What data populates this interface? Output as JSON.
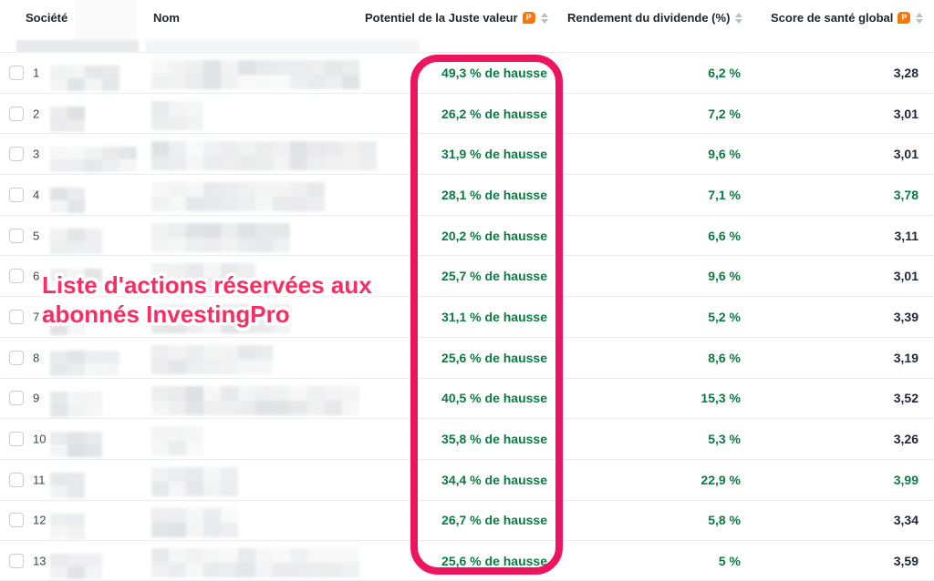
{
  "header": {
    "columns": [
      {
        "label": "Société",
        "pro_badge": false,
        "sortable": false
      },
      {
        "label": "Nom",
        "pro_badge": false,
        "sortable": false
      },
      {
        "label": "Potentiel de la Juste valeur",
        "pro_badge": true,
        "sortable": true
      },
      {
        "label": "Rendement du dividende (%)",
        "pro_badge": false,
        "sortable": true
      },
      {
        "label": "Score de santé global",
        "pro_badge": true,
        "sortable": true
      }
    ],
    "pro_badge_letter": "P"
  },
  "overlay": {
    "line1": "Liste d'actions réservées aux",
    "line2": "abonnés InvestingPro"
  },
  "colors": {
    "annotation_pink": "#ed155e",
    "overlay_text_pink": "#f62e63",
    "positive_green": "#0a7c43",
    "score_dark": "#1e2736",
    "pro_badge_orange": "#f7770f"
  },
  "rows": [
    {
      "num": "1",
      "fair_value": "49,3 % de hausse",
      "dividend_yield": "6,2 %",
      "health_score": "3,28",
      "score_green": false
    },
    {
      "num": "2",
      "fair_value": "26,2 % de hausse",
      "dividend_yield": "7,2 %",
      "health_score": "3,01",
      "score_green": false
    },
    {
      "num": "3",
      "fair_value": "31,9 % de hausse",
      "dividend_yield": "9,6 %",
      "health_score": "3,01",
      "score_green": false
    },
    {
      "num": "4",
      "fair_value": "28,1 % de hausse",
      "dividend_yield": "7,1 %",
      "health_score": "3,78",
      "score_green": true
    },
    {
      "num": "5",
      "fair_value": "20,2 % de hausse",
      "dividend_yield": "6,6 %",
      "health_score": "3,11",
      "score_green": false
    },
    {
      "num": "6",
      "fair_value": "25,7 % de hausse",
      "dividend_yield": "9,6 %",
      "health_score": "3,01",
      "score_green": false
    },
    {
      "num": "7",
      "fair_value": "31,1 % de hausse",
      "dividend_yield": "5,2 %",
      "health_score": "3,39",
      "score_green": false
    },
    {
      "num": "8",
      "fair_value": "25,6 % de hausse",
      "dividend_yield": "8,6 %",
      "health_score": "3,19",
      "score_green": false
    },
    {
      "num": "9",
      "fair_value": "40,5 % de hausse",
      "dividend_yield": "15,3 %",
      "health_score": "3,52",
      "score_green": false
    },
    {
      "num": "10",
      "fair_value": "35,8 % de hausse",
      "dividend_yield": "5,3 %",
      "health_score": "3,26",
      "score_green": false
    },
    {
      "num": "11",
      "fair_value": "34,4 % de hausse",
      "dividend_yield": "22,9 %",
      "health_score": "3,99",
      "score_green": true
    },
    {
      "num": "12",
      "fair_value": "26,7 % de hausse",
      "dividend_yield": "5,8 %",
      "health_score": "3,34",
      "score_green": false
    },
    {
      "num": "13",
      "fair_value": "25,6 % de hausse",
      "dividend_yield": "5 %",
      "health_score": "3,59",
      "score_green": false
    }
  ]
}
